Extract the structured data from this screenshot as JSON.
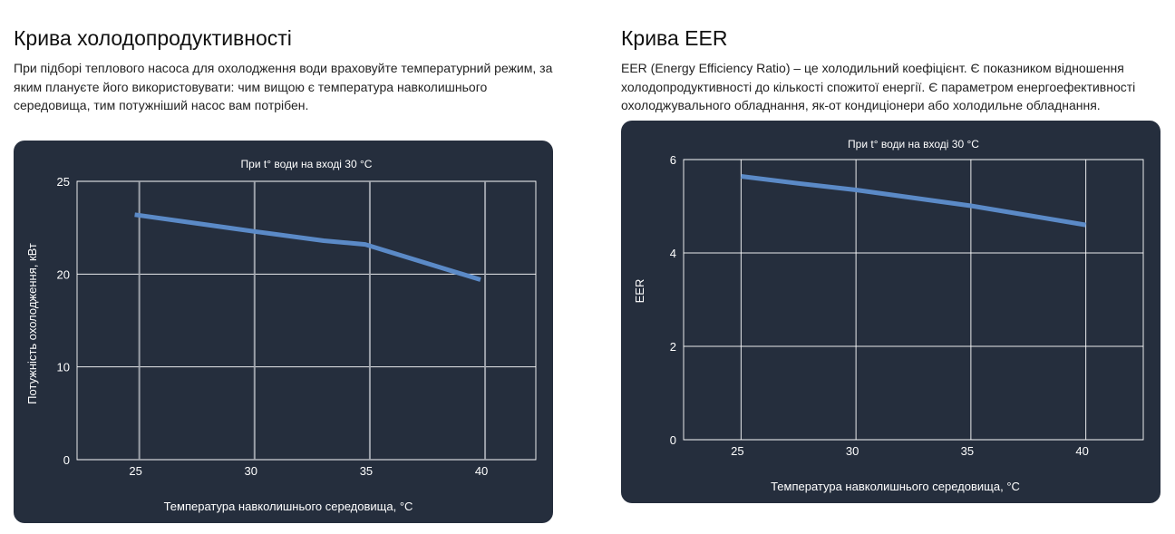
{
  "sections": {
    "left": {
      "title": "Крива холодопродуктивності",
      "description": "При підборі теплового насоса для охолодження води враховуйте температурний режим, за яким плануєте його використовувати: чим вищою є температура навколишнього середовища, тим потужніший насос вам потрібен."
    },
    "right": {
      "title": "Крива EER",
      "description": "EER (Energy Efficiency Ratio) – це холодильний коефіцієнт. Є показником відношення холодопродуктивності до кількості спожитої енергії. Є параметром енергоефективності охолоджувального обладнання, як-от кондиціонери або холодильне обладнання."
    }
  },
  "colors": {
    "panel_bg": "#252e3d",
    "line": "#5b8ac7",
    "grid": "#ffffff",
    "text": "#ffffff"
  },
  "chart_data": [
    {
      "id": "cooling",
      "type": "line",
      "title": "При t° води на вході 30 °C",
      "xlabel": "Температура навколишнього середовища, °C",
      "ylabel": "Потужність охолодження, кВт",
      "x_ticks": [
        25,
        30,
        35,
        40
      ],
      "x_tick_labels": [
        "25",
        "30",
        "35",
        "40"
      ],
      "xlim": [
        22.3,
        42.2
      ],
      "y_ticks": [
        0,
        10,
        20,
        25
      ],
      "y_tick_labels": [
        "0",
        "10",
        "20",
        "25"
      ],
      "y_scale": "ticks-equally-spaced",
      "ylim": [
        0,
        25
      ],
      "grid": true,
      "series": [
        {
          "name": "Потужність охолодження",
          "x": [
            24.8,
            30,
            33,
            34.8,
            39.8
          ],
          "y": [
            23.2,
            22.3,
            21.8,
            21.6,
            19.4
          ]
        }
      ]
    },
    {
      "id": "eer",
      "type": "line",
      "title": "При t° води на вході 30 °C",
      "xlabel": "Температура навколишнього середовища, °C",
      "ylabel": "EER",
      "x_ticks": [
        25,
        30,
        35,
        40
      ],
      "x_tick_labels": [
        "25",
        "30",
        "35",
        "40"
      ],
      "xlim": [
        22.5,
        42.5
      ],
      "y_ticks": [
        0,
        2,
        4,
        6
      ],
      "y_tick_labels": [
        "0",
        "2",
        "4",
        "6"
      ],
      "y_scale": "linear",
      "ylim": [
        0,
        6
      ],
      "grid": true,
      "series": [
        {
          "name": "EER",
          "x": [
            25,
            27.5,
            30,
            35,
            40
          ],
          "y": [
            5.64,
            5.49,
            5.35,
            5.01,
            4.6
          ]
        }
      ]
    }
  ]
}
